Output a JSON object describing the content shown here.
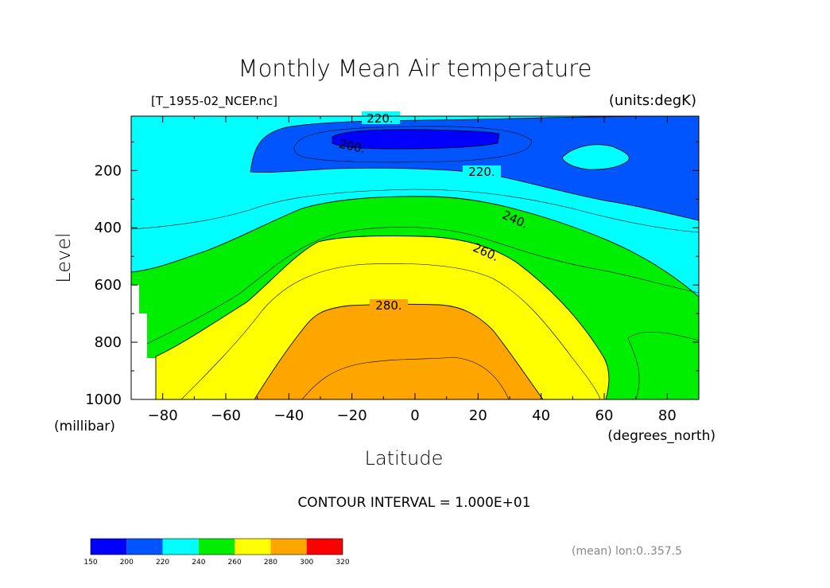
{
  "chart_data": {
    "type": "contour",
    "title": "Monthly Mean Air temperature",
    "file_label": "[T_1955-02_NCEP.nc]",
    "units_label": "(units:degK)",
    "ylabel": "Level",
    "yunits": "(millibar)",
    "xlabel": "Latitude",
    "xunits": "(degrees_north)",
    "xlim": [
      -90,
      90
    ],
    "ylim": [
      1000,
      10
    ],
    "x_ticks": [
      "-80",
      "-60",
      "-40",
      "-20",
      "0",
      "20",
      "40",
      "60",
      "80"
    ],
    "y_ticks": [
      "200",
      "400",
      "600",
      "800",
      "1000"
    ],
    "contour_interval_text": "CONTOUR INTERVAL = 1.000E+01",
    "contour_labels": [
      "220.",
      "200.",
      "220.",
      "240.",
      "260.",
      "280."
    ],
    "levels": [
      150,
      200,
      220,
      240,
      260,
      280,
      300,
      320
    ],
    "level_colors": [
      "#0000ff",
      "#0055ff",
      "#00ffff",
      "#00ee00",
      "#ffff00",
      "#ffa500",
      "#ff0000"
    ],
    "colorbar_labels": [
      "150",
      "200",
      "220",
      "240",
      "260",
      "280",
      "300",
      "320"
    ],
    "footer_note": "(mean) lon:0..357.5"
  }
}
